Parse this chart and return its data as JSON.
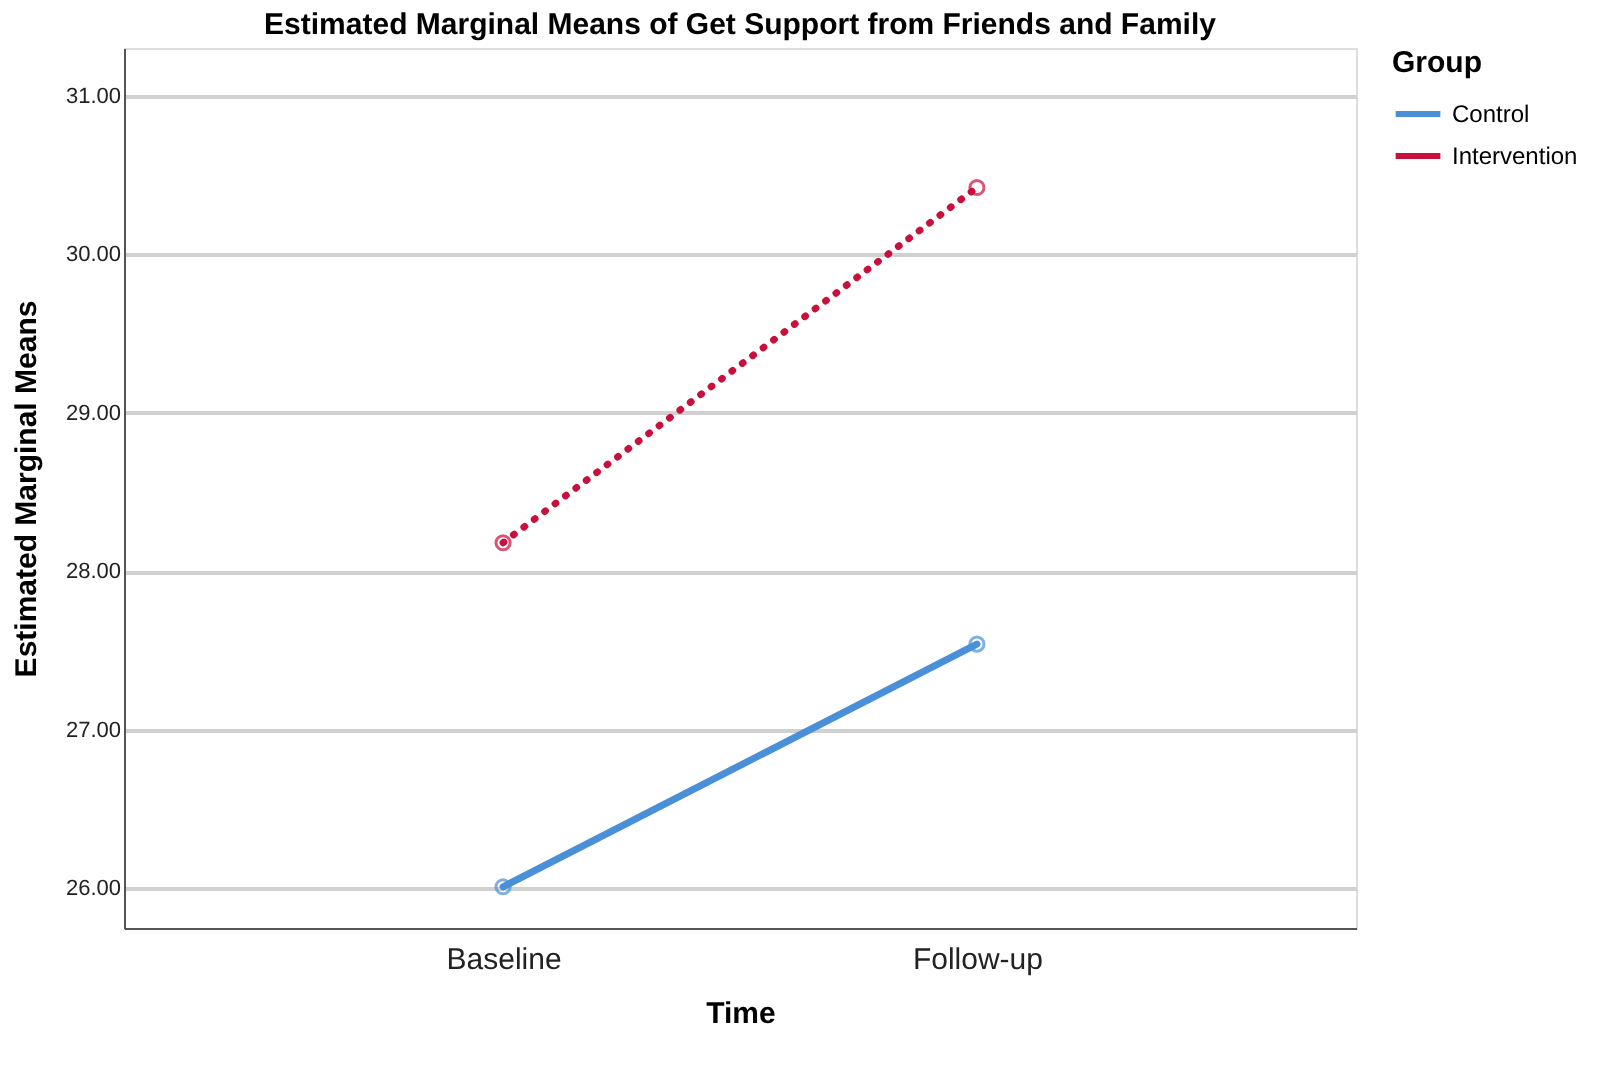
{
  "chart_data": {
    "type": "line",
    "title": "Estimated Marginal Means of Get Support from Friends and Family",
    "xlabel": "Time",
    "ylabel": "Estimated Marginal Means",
    "legend_title": "Group",
    "categories": [
      "Baseline",
      "Follow-up"
    ],
    "series": [
      {
        "name": "Control",
        "color": "#4a90d9",
        "values": [
          26.01,
          27.54
        ],
        "line_style": "solid"
      },
      {
        "name": "Intervention",
        "color": "#c8103c",
        "values": [
          28.18,
          30.42
        ],
        "line_style": "dotted"
      }
    ],
    "ylim": [
      25.75,
      31.3
    ],
    "yticks": [
      {
        "value": 26,
        "label": "26.00"
      },
      {
        "value": 27,
        "label": "27.00"
      },
      {
        "value": 28,
        "label": "28.00"
      },
      {
        "value": 29,
        "label": "29.00"
      },
      {
        "value": 30,
        "label": "30.00"
      },
      {
        "value": 31,
        "label": "31.00"
      }
    ],
    "grid": "y",
    "legend": "top right",
    "marker": "circle"
  }
}
